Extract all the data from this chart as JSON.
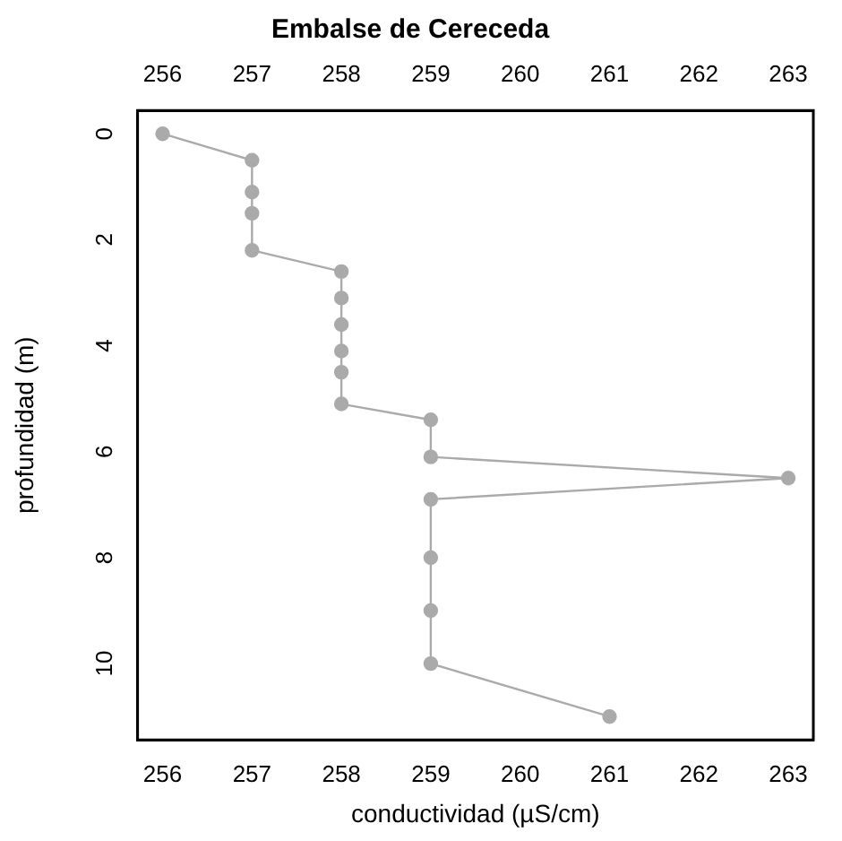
{
  "chart_data": {
    "type": "line",
    "title": "Embalse de Cereceda",
    "xlabel": "conductividad (µS/cm)",
    "ylabel": "profundidad (m)",
    "x": [
      256,
      257,
      257,
      257,
      257,
      258,
      258,
      258,
      258,
      258,
      258,
      259,
      259,
      263,
      259,
      259,
      259,
      259,
      261
    ],
    "values": [
      0,
      0.5,
      1.1,
      1.5,
      2.2,
      2.6,
      3.1,
      3.6,
      4.1,
      4.5,
      5.1,
      5.4,
      6.1,
      6.5,
      6.9,
      8,
      9,
      10,
      11
    ],
    "color": "#aaaaaa",
    "marker": "circle",
    "line_style": "solid",
    "grid": false,
    "legend": false,
    "xlim": [
      255.72,
      263.28
    ],
    "xticks": [
      256,
      257,
      258,
      259,
      260,
      261,
      262,
      263
    ],
    "x2lim": [
      255.72,
      263.28
    ],
    "x2ticks": [
      256,
      257,
      258,
      259,
      260,
      261,
      262,
      263
    ],
    "ylim": [
      11.44,
      -0.44
    ],
    "yticks": [
      0,
      2,
      4,
      6,
      8,
      10
    ]
  }
}
